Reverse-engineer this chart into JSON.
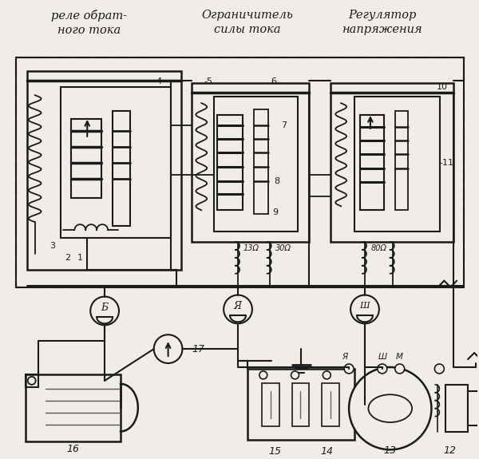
{
  "bg_color": "#f0ede8",
  "line_color": "#1a1a1a",
  "title1": "реле обрат-\nного тока",
  "title2": "Ограничитель\nсилы тока",
  "title3": "Регулятор\nнапряжения",
  "figsize": [
    6.0,
    5.75
  ],
  "dpi": 100
}
